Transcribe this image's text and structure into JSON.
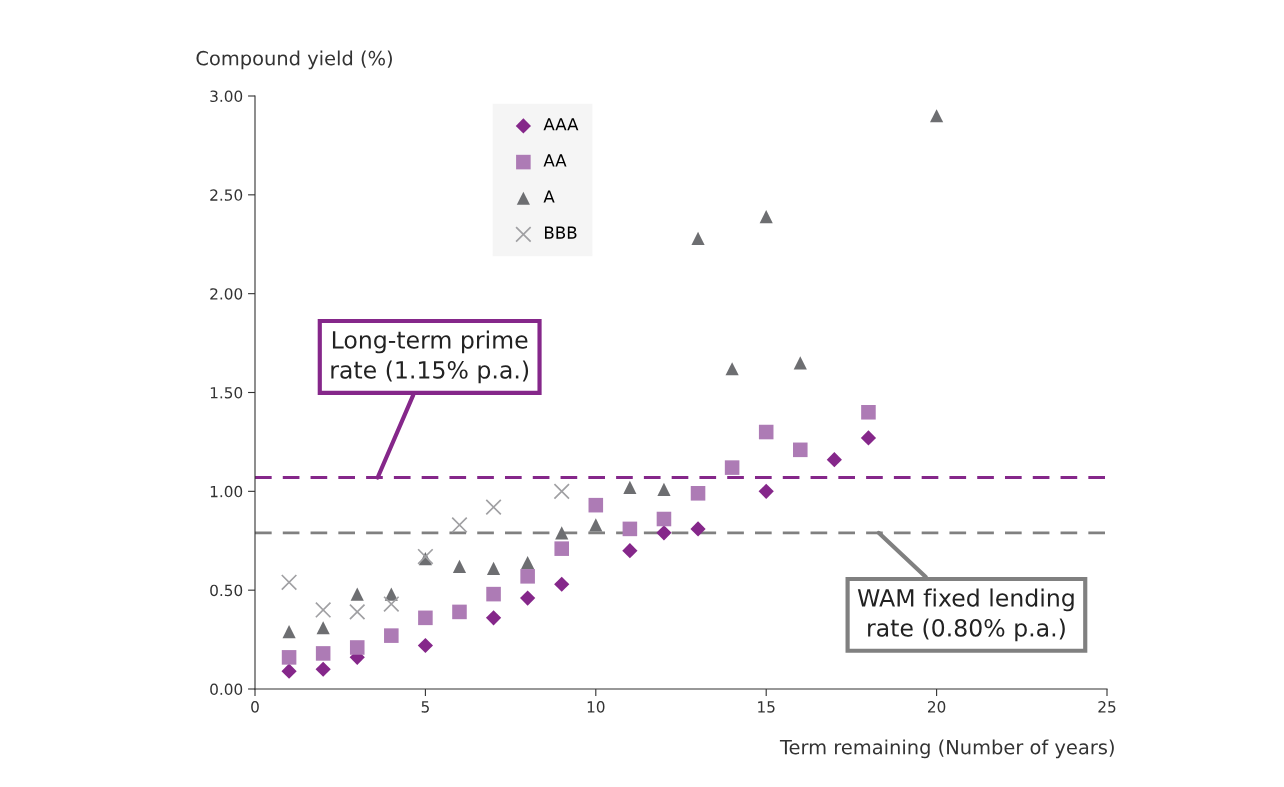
{
  "chart_data": {
    "type": "scatter",
    "xlabel": "Term remaining (Number of years)",
    "ylabel": "Compound yield (%)",
    "xlim": [
      0,
      25
    ],
    "xticks": [
      0,
      5,
      10,
      15,
      20,
      25
    ],
    "ylim": [
      0,
      3
    ],
    "yticks": [
      {
        "value": 0,
        "label": "0.00"
      },
      {
        "value": 0.5,
        "label": "0.50"
      },
      {
        "value": 1,
        "label": "1.00"
      },
      {
        "value": 1.5,
        "label": "1.50"
      },
      {
        "value": 2,
        "label": "2.00"
      },
      {
        "value": 2.5,
        "label": "2.50"
      },
      {
        "value": 3,
        "label": "3.00"
      }
    ],
    "grid": false,
    "legend": "top left",
    "series": [
      {
        "name": "AAA",
        "color": "#85278a",
        "marker": "diamond",
        "x": [
          1,
          2,
          3,
          5,
          7,
          8,
          9,
          11,
          12,
          13,
          15,
          17,
          18
        ],
        "values": [
          0.09,
          0.1,
          0.16,
          0.22,
          0.36,
          0.46,
          0.53,
          0.7,
          0.79,
          0.81,
          1.0,
          1.16,
          1.27
        ]
      },
      {
        "name": "AA",
        "color": "#ad7bb5",
        "marker": "square",
        "x": [
          1,
          2,
          3,
          4,
          5,
          6,
          7,
          8,
          9,
          10,
          11,
          12,
          13,
          14,
          15,
          16,
          18
        ],
        "values": [
          0.16,
          0.18,
          0.21,
          0.27,
          0.36,
          0.39,
          0.48,
          0.57,
          0.71,
          0.93,
          0.81,
          0.86,
          0.99,
          1.12,
          1.3,
          1.21,
          1.4
        ]
      },
      {
        "name": "A",
        "color": "#6d6e71",
        "marker": "triangle",
        "x": [
          1,
          2,
          3,
          4,
          5,
          6,
          7,
          8,
          9,
          10,
          11,
          12,
          13,
          14,
          15,
          16,
          20
        ],
        "values": [
          0.29,
          0.31,
          0.48,
          0.48,
          0.66,
          0.62,
          0.61,
          0.64,
          0.79,
          0.83,
          1.02,
          1.01,
          2.28,
          1.62,
          2.39,
          1.65,
          2.9
        ]
      },
      {
        "name": "BBB",
        "color": "#a0a0a3",
        "marker": "cross",
        "x": [
          1,
          2,
          3,
          4,
          5,
          6,
          7,
          9
        ],
        "values": [
          0.54,
          0.4,
          0.39,
          0.43,
          0.67,
          0.83,
          0.92,
          1.0
        ]
      }
    ],
    "ref_lines": [
      {
        "axis": "y",
        "value": 1.07,
        "label": "Long-term prime\nrate (1.15% p.a.)",
        "color": "#85278a",
        "line_style": "dashed"
      },
      {
        "axis": "y",
        "value": 0.79,
        "label": "WAM fixed lending\nrate (0.80% p.a.)",
        "color": "#808080",
        "line_style": "dashed"
      }
    ]
  }
}
